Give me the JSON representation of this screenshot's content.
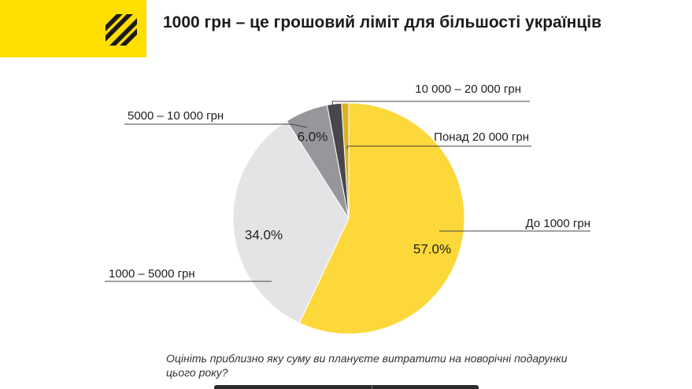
{
  "header": {
    "title": "1000 грн – це грошовий ліміт для більшості українців"
  },
  "logo": {
    "icon": "diagonal-stripes-logo-icon",
    "color": "#ffde00"
  },
  "chart_data": {
    "type": "pie",
    "title": "1000 грн – це грошовий ліміт для більшості українців",
    "slices": [
      {
        "label": "До 1000 грн",
        "value": 57.0,
        "display": "57.0%",
        "color": "#fdd83a"
      },
      {
        "label": "1000 – 5000 грн",
        "value": 34.0,
        "display": "34.0%",
        "color": "#e4e4e6"
      },
      {
        "label": "5000 – 10 000 грн",
        "value": 6.0,
        "display": "6.0%",
        "color": "#97979b"
      },
      {
        "label": "10 000 – 20 000 грн",
        "value": 2.0,
        "display": "",
        "color": "#48484c"
      },
      {
        "label": "Понад 20 000 грн",
        "value": 1.0,
        "display": "",
        "color": "#d9b21e"
      }
    ],
    "legend": "callout labels"
  },
  "question": "Оцініть приблизно яку суму ви плануєте витратити на новорічні подарунки цього року?"
}
